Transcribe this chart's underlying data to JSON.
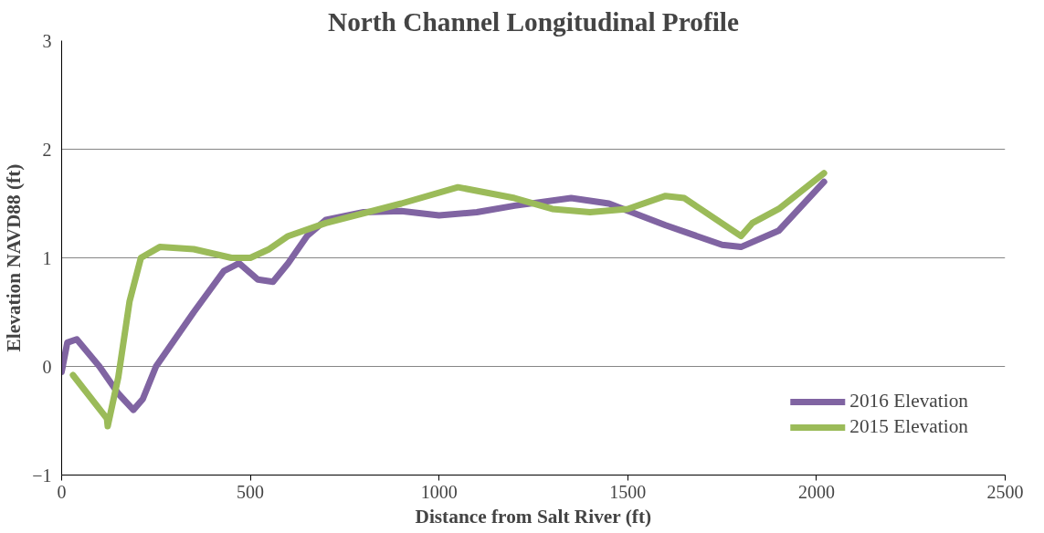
{
  "chart_data": {
    "type": "line",
    "title": "North Channel Longitudinal Profile",
    "xlabel": "Distance from Salt River (ft)",
    "ylabel": "Elevation NAVD88 (ft)",
    "xlim": [
      0,
      2500
    ],
    "xticks": [
      0,
      500,
      1000,
      1500,
      2000,
      2500
    ],
    "ylim": [
      -1,
      3
    ],
    "yticks": [
      -1,
      0,
      1,
      2,
      3
    ],
    "grid": "y",
    "legend": "bottom right",
    "marker": "none",
    "line_style": "solid",
    "series": [
      {
        "name": "2016 Elevation",
        "color": "#8064a2",
        "x": [
          0,
          15,
          40,
          100,
          150,
          190,
          215,
          250,
          350,
          430,
          470,
          520,
          560,
          600,
          650,
          700,
          800,
          900,
          1000,
          1100,
          1200,
          1350,
          1450,
          1600,
          1750,
          1800,
          1900,
          2020
        ],
        "values": [
          -0.05,
          0.22,
          0.25,
          0.0,
          -0.25,
          -0.4,
          -0.3,
          0.0,
          0.5,
          0.88,
          0.95,
          0.8,
          0.78,
          0.95,
          1.2,
          1.35,
          1.42,
          1.43,
          1.39,
          1.42,
          1.48,
          1.55,
          1.5,
          1.3,
          1.12,
          1.1,
          1.25,
          1.7
        ]
      },
      {
        "name": "2015 Elevation",
        "color": "#9bbb59",
        "x": [
          30,
          120,
          122,
          150,
          180,
          210,
          260,
          350,
          450,
          500,
          550,
          600,
          700,
          900,
          1050,
          1200,
          1300,
          1400,
          1500,
          1600,
          1650,
          1800,
          1830,
          1900,
          2020
        ],
        "values": [
          -0.08,
          -0.48,
          -0.55,
          -0.1,
          0.6,
          1.0,
          1.1,
          1.08,
          1.0,
          1.0,
          1.08,
          1.2,
          1.32,
          1.5,
          1.65,
          1.55,
          1.45,
          1.42,
          1.45,
          1.57,
          1.55,
          1.2,
          1.32,
          1.45,
          1.78
        ]
      }
    ]
  }
}
